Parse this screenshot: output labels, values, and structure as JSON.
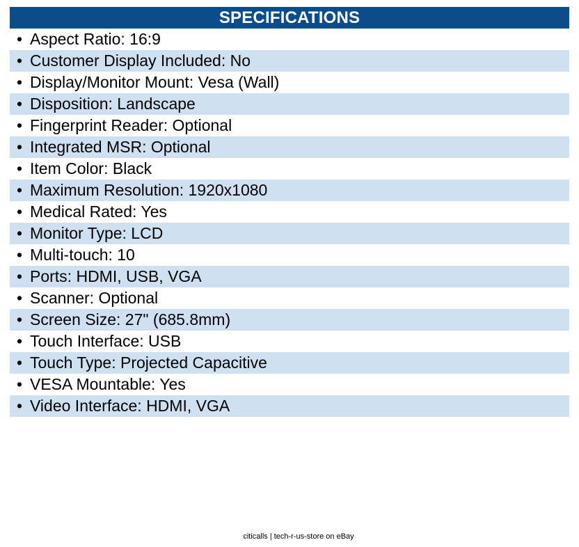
{
  "header": {
    "title": "SPECIFICATIONS"
  },
  "bullet_glyph": "•",
  "specs": [
    "Aspect Ratio: 16:9",
    "Customer Display Included: No",
    "Display/Monitor Mount: Vesa (Wall)",
    "Disposition: Landscape",
    "Fingerprint Reader: Optional",
    "Integrated MSR: Optional",
    "Item Color: Black",
    "Maximum Resolution: 1920x1080",
    "Medical Rated: Yes",
    "Monitor Type: LCD",
    "Multi-touch: 10",
    "Ports: HDMI, USB, VGA",
    "Scanner: Optional",
    "Screen Size: 27\" (685.8mm)",
    "Touch Interface: USB",
    "Touch Type: Projected Capacitive",
    "VESA Mountable: Yes",
    "Video Interface: HDMI, VGA"
  ],
  "footer": {
    "text": "citicalls | tech-r-us-store on eBay"
  },
  "colors": {
    "header_bg": "#0b4c8c",
    "row_alt_bg": "#cfe0f3",
    "row_bg": "#ffffff"
  }
}
